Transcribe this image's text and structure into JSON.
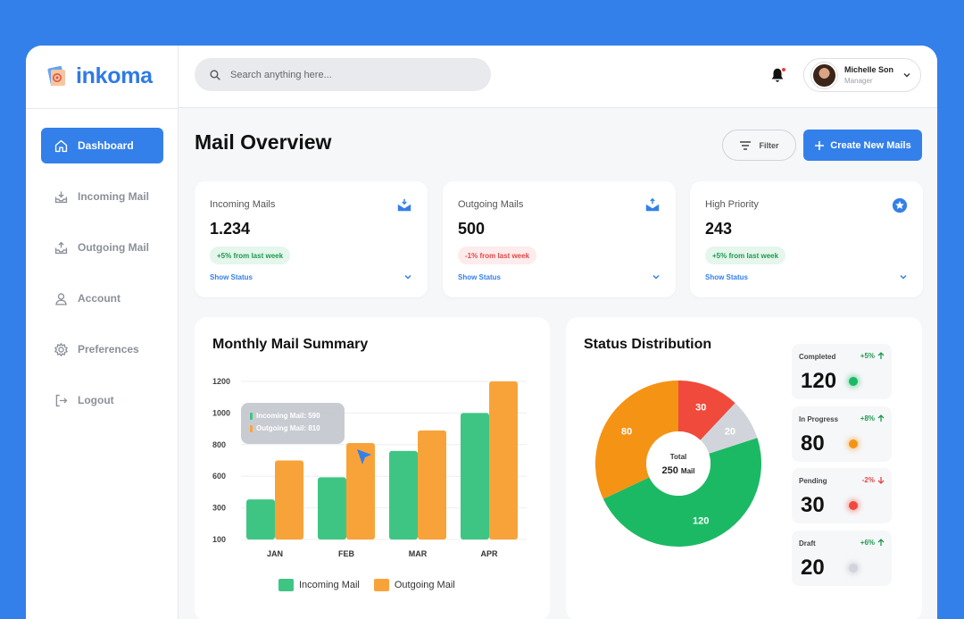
{
  "brand": {
    "name": "inkoma",
    "accent": "#3480ea"
  },
  "sidebar": {
    "items": [
      {
        "label": "Dashboard",
        "icon": "home-icon",
        "active": true
      },
      {
        "label": "Incoming Mail",
        "icon": "inbox-in-icon",
        "active": false
      },
      {
        "label": "Outgoing Mail",
        "icon": "inbox-out-icon",
        "active": false
      },
      {
        "label": "Account",
        "icon": "user-icon",
        "active": false
      },
      {
        "label": "Preferences",
        "icon": "gear-icon",
        "active": false
      },
      {
        "label": "Logout",
        "icon": "logout-icon",
        "active": false
      }
    ]
  },
  "header": {
    "search_placeholder": "Search anything here...",
    "user": {
      "name": "Michelle Son",
      "role": "Manager"
    }
  },
  "main": {
    "title": "Mail Overview",
    "filter_label": "Filter",
    "create_label": "Create New Mails",
    "cards": [
      {
        "label": "Incoming Mails",
        "value": "1.234",
        "badge": "+5% from last week",
        "trend": "up",
        "link": "Show Status",
        "icon": "mail-in-icon"
      },
      {
        "label": "Outgoing Mails",
        "value": "500",
        "badge": "-1% from last week",
        "trend": "down",
        "link": "Show Status",
        "icon": "mail-out-icon"
      },
      {
        "label": "High Priority",
        "value": "243",
        "badge": "+5% from last week",
        "trend": "up",
        "link": "Show Status",
        "icon": "star-badge-icon"
      }
    ]
  },
  "monthly": {
    "title": "Monthly Mail Summary",
    "tooltip": {
      "incoming": "Incoming Mail: 590",
      "outgoing": "Outgoing Mail: 810"
    }
  },
  "status": {
    "title": "Status Distribution",
    "total_label": "Total",
    "total_value": "250",
    "total_unit": "Mail",
    "cards": [
      {
        "label": "Completed",
        "change": "+5%",
        "trend": "up",
        "value": "120",
        "color": "#1cb964"
      },
      {
        "label": "In Progress",
        "change": "+8%",
        "trend": "up",
        "value": "80",
        "color": "#f59314"
      },
      {
        "label": "Pending",
        "change": "-2%",
        "trend": "down",
        "value": "30",
        "color": "#ef4a3c"
      },
      {
        "label": "Draft",
        "change": "+6%",
        "trend": "up",
        "value": "20",
        "color": "#d1d5db"
      }
    ]
  },
  "chart_data": [
    {
      "type": "bar",
      "categories": [
        "JAN",
        "FEB",
        "MAR",
        "APR"
      ],
      "series": [
        {
          "name": "Incoming Mail",
          "color": "#3fc583",
          "values": [
            380,
            590,
            760,
            1000
          ]
        },
        {
          "name": "Outgoing Mail",
          "color": "#f8a33a",
          "values": [
            700,
            810,
            890,
            1200
          ]
        }
      ],
      "yticks": [
        100,
        300,
        600,
        800,
        1000,
        1200
      ],
      "ylim": [
        100,
        1200
      ]
    },
    {
      "type": "pie",
      "categories": [
        "Pending",
        "Draft",
        "Completed",
        "In Progress"
      ],
      "values": [
        30,
        20,
        120,
        80
      ],
      "colors": [
        "#ef4a3c",
        "#d1d5db",
        "#1cb964",
        "#f59314"
      ]
    }
  ]
}
